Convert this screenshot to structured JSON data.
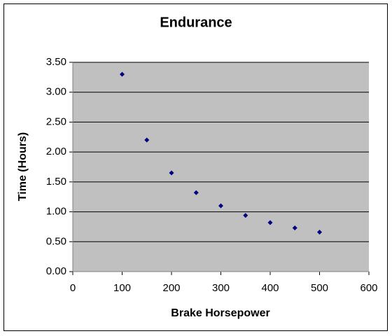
{
  "chart_data": {
    "type": "scatter",
    "title": "Endurance",
    "x_label": "Brake Horsepower",
    "y_label": "Time (Hours)",
    "x": [
      100,
      150,
      200,
      250,
      300,
      350,
      400,
      450,
      500
    ],
    "values": [
      3.3,
      2.2,
      1.65,
      1.32,
      1.1,
      0.94,
      0.82,
      0.73,
      0.66
    ],
    "color": "#000080",
    "xlim": [
      0,
      600
    ],
    "xticks": [
      0,
      100,
      200,
      300,
      400,
      500,
      600
    ],
    "ylim": [
      0,
      3.5
    ],
    "yticks": [
      {
        "value": 0,
        "label": "0.00"
      },
      {
        "value": 0.5,
        "label": "0.50"
      },
      {
        "value": 1,
        "label": "1.00"
      },
      {
        "value": 1.5,
        "label": "1.50"
      },
      {
        "value": 2,
        "label": "2.00"
      },
      {
        "value": 2.5,
        "label": "2.50"
      },
      {
        "value": 3,
        "label": "3.00"
      },
      {
        "value": 3.5,
        "label": "3.50"
      }
    ],
    "grid": true
  }
}
